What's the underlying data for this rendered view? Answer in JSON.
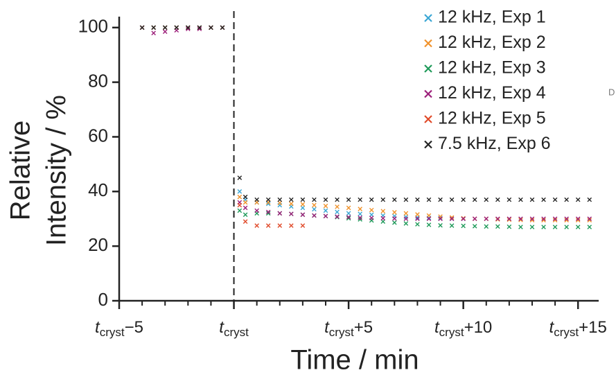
{
  "chart_data": {
    "type": "scatter",
    "xlabel": "Time / min",
    "ylabel": [
      "Relative",
      "Intensity / %"
    ],
    "side_label": "D",
    "xlim": [
      -5,
      15.9
    ],
    "ylim": [
      0,
      104
    ],
    "xticks": [
      {
        "value": -5,
        "label": "tcryst−5"
      },
      {
        "value": 0,
        "label": "tcryst"
      },
      {
        "value": 5,
        "label": "tcryst+5"
      },
      {
        "value": 10,
        "label": "tcryst+10"
      },
      {
        "value": 15,
        "label": "tcryst+15"
      }
    ],
    "x_minor_ticks": [
      -4,
      -3,
      -2,
      -1,
      1,
      2,
      3,
      4,
      6,
      7,
      8,
      9,
      11,
      12,
      13,
      14
    ],
    "yticks": [
      0,
      20,
      40,
      60,
      80,
      100
    ],
    "crystallization_line_x": 0,
    "legend": "upper right",
    "series": [
      {
        "name": "12 kHz, Exp 1",
        "color": "#3ba7d4",
        "x": [
          -4,
          -3.5,
          -3,
          -2.5,
          -2,
          -1.5,
          -1,
          -0.5,
          0.25,
          0.5,
          1,
          1.5,
          2,
          2.5,
          3,
          3.5,
          4,
          4.5,
          5,
          5.5,
          6,
          6.5,
          7,
          7.5,
          8,
          8.5,
          9,
          9.5,
          10
        ],
        "values": [
          100,
          100,
          100,
          100,
          100,
          100,
          100,
          100,
          40,
          37,
          36,
          35.5,
          35,
          34.5,
          34,
          33.5,
          33,
          32.5,
          32,
          31.8,
          31.5,
          31.2,
          31,
          30.7,
          30.5,
          30.3,
          30.2,
          30,
          30
        ]
      },
      {
        "name": "12 kHz, Exp 2",
        "color": "#f0922b",
        "x": [
          -4,
          -3.5,
          -3,
          -2.5,
          -2,
          -1.5,
          -1,
          -0.5,
          0.25,
          0.5,
          1,
          1.5,
          2,
          2.5,
          3,
          3.5,
          4,
          4.5,
          5,
          5.5,
          6,
          6.5,
          7,
          7.5,
          8,
          8.5,
          9,
          9.5,
          10,
          10.5,
          11,
          11.5,
          12,
          12.5,
          13,
          13.5,
          14,
          14.5,
          15,
          15.5
        ],
        "values": [
          100,
          100,
          100,
          100,
          100,
          100,
          100,
          100,
          38,
          36,
          36,
          36,
          35.8,
          35.5,
          35.3,
          35,
          34.7,
          34.4,
          34,
          33.6,
          33.2,
          32.8,
          32.4,
          32,
          31.6,
          31.2,
          30.8,
          30.5,
          30.2,
          30,
          30,
          29.8,
          29.7,
          29.6,
          29.5,
          29.5,
          29.5,
          29.5,
          29.5,
          29.5
        ]
      },
      {
        "name": "12 kHz, Exp 3",
        "color": "#1f9a5a",
        "x": [
          -4,
          -3.5,
          -3,
          -2.5,
          -2,
          -1.5,
          -1,
          -0.5,
          0.25,
          0.5,
          1,
          1.5,
          2,
          2.5,
          3,
          3.5,
          4,
          4.5,
          5,
          5.5,
          6,
          6.5,
          7,
          7.5,
          8,
          8.5,
          9,
          9.5,
          10,
          10.5,
          11,
          11.5,
          12,
          12.5,
          13,
          13.5,
          14,
          14.5,
          15,
          15.5
        ],
        "values": [
          100,
          100,
          100,
          100,
          100,
          100,
          100,
          100,
          33,
          31.5,
          32,
          32,
          32,
          31.8,
          31.5,
          31.2,
          31,
          30.6,
          30.2,
          29.8,
          29.4,
          29,
          28.6,
          28.3,
          28,
          27.8,
          27.6,
          27.5,
          27.4,
          27.3,
          27.2,
          27.2,
          27.1,
          27,
          27,
          27,
          27,
          27,
          27,
          27
        ]
      },
      {
        "name": "12 kHz, Exp 4",
        "color": "#9c1f7a",
        "x": [
          -4,
          -3.5,
          -3,
          -2.5,
          -2,
          -1.5,
          -1,
          -0.5,
          0.25,
          0.5,
          1,
          1.5,
          2,
          2.5,
          3,
          3.5,
          4,
          4.5,
          5,
          5.5,
          6,
          6.5,
          7,
          7.5,
          8,
          8.5,
          9,
          9.5,
          10,
          10.5,
          11,
          11.5,
          12,
          12.5,
          13,
          13.5,
          14,
          14.5,
          15,
          15.5
        ],
        "values": [
          100,
          98,
          98.5,
          99,
          99.5,
          99.5,
          100,
          100,
          36,
          34,
          33,
          32.5,
          32,
          31.8,
          31.5,
          31.2,
          31,
          30.8,
          30.6,
          30.4,
          30.3,
          30.2,
          30.1,
          30,
          30,
          30,
          30,
          30,
          30,
          30,
          30,
          30,
          30,
          30,
          30,
          30,
          30,
          30,
          30,
          30
        ]
      },
      {
        "name": "12 kHz, Exp 5",
        "color": "#e04a2a",
        "x": [
          -4,
          -3.5,
          -3,
          -2.5,
          -2,
          -1.5,
          -1,
          -0.5,
          0.25,
          0.5,
          1,
          1.5,
          2,
          2.5,
          3
        ],
        "values": [
          100,
          100,
          100,
          100,
          100,
          100,
          100,
          100,
          35,
          29,
          27.5,
          27.5,
          27.5,
          27.5,
          27.5
        ]
      },
      {
        "name": "7.5 kHz, Exp 6",
        "color": "#222222",
        "x": [
          -4,
          -3.5,
          -3,
          -2.5,
          -2,
          -1.5,
          -1,
          -0.5,
          0.25,
          0.5,
          1,
          1.5,
          2,
          2.5,
          3,
          3.5,
          4,
          4.5,
          5,
          5.5,
          6,
          6.5,
          7,
          7.5,
          8,
          8.5,
          9,
          9.5,
          10,
          10.5,
          11,
          11.5,
          12,
          12.5,
          13,
          13.5,
          14,
          14.5,
          15,
          15.5
        ],
        "values": [
          100,
          100,
          100,
          100,
          100,
          100,
          100,
          100,
          45,
          38,
          37,
          37,
          37,
          37,
          37,
          37,
          37,
          37,
          37,
          37,
          37,
          37,
          37,
          37,
          37,
          37,
          37,
          37,
          37,
          37,
          37,
          37,
          37,
          37,
          37,
          37,
          37,
          37,
          37,
          37
        ]
      }
    ]
  }
}
